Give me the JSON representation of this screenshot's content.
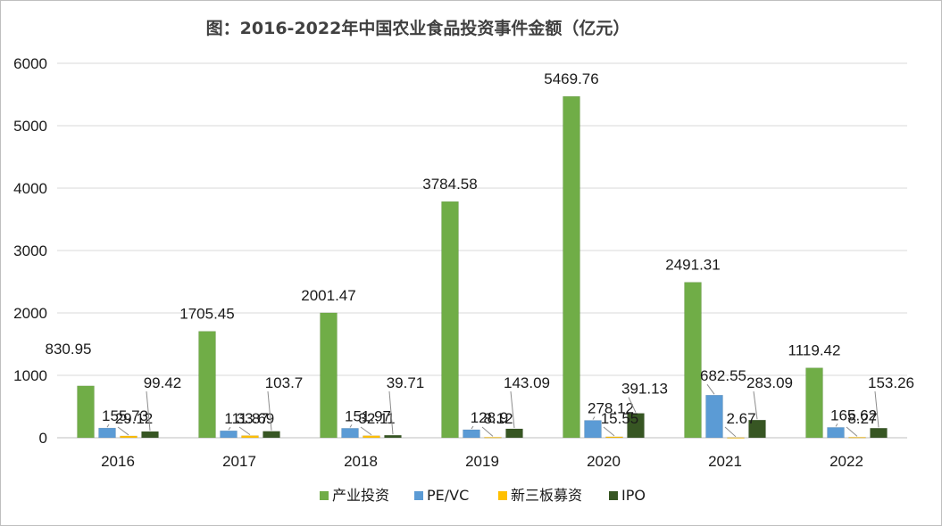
{
  "chart_data": {
    "type": "bar",
    "title": "图：2016-2022年中国农业食品投资事件金额（亿元）",
    "xlabel": "",
    "ylabel": "",
    "ylim": [
      0,
      6000
    ],
    "yticks": [
      0,
      1000,
      2000,
      3000,
      4000,
      5000,
      6000
    ],
    "grid": true,
    "legend_position": "bottom",
    "categories": [
      "2016",
      "2017",
      "2018",
      "2019",
      "2020",
      "2021",
      "2022"
    ],
    "series": [
      {
        "name": "产业投资",
        "color": "#70ad47",
        "values": [
          830.95,
          1705.45,
          2001.47,
          3784.58,
          5469.76,
          2491.31,
          1119.42
        ],
        "labels": [
          "830.95",
          "1705.45",
          "2001.47",
          "3784.58",
          "5469.76",
          "2491.31",
          "1119.42"
        ]
      },
      {
        "name": "PE/VC",
        "color": "#5b9bd5",
        "values": [
          155.73,
          111.87,
          151.97,
          128.9,
          278.12,
          682.55,
          165.62
        ],
        "labels": [
          "155.73",
          "111.87",
          "151.97",
          "128.9",
          "278.12",
          "682.55",
          "165.62"
        ]
      },
      {
        "name": "新三板募资",
        "color": "#ffc000",
        "values": [
          29.12,
          33.69,
          32.11,
          8.12,
          15.55,
          2.67,
          8.27
        ],
        "labels": [
          "29.12",
          "33.69",
          "32.11",
          "8.12",
          "15.55",
          "2.67",
          "8.27"
        ]
      },
      {
        "name": "IPO",
        "color": "#375623",
        "values": [
          99.42,
          103.7,
          39.71,
          143.09,
          391.13,
          283.09,
          153.26
        ],
        "labels": [
          "99.42",
          "103.7",
          "39.71",
          "143.09",
          "391.13",
          "283.09",
          "153.26"
        ]
      }
    ]
  }
}
